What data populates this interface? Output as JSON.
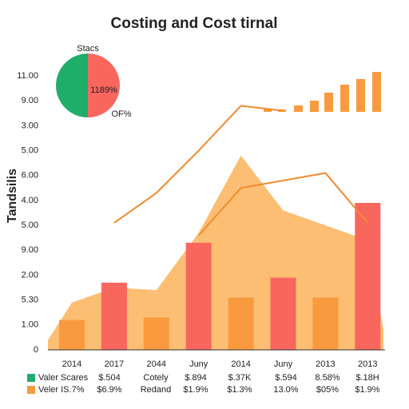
{
  "chart_data": {
    "type": "combo",
    "title": "Costing and Cost tirnal",
    "y_label": "Tandsilis",
    "categories": [
      "2014",
      "2017",
      "2044",
      "Juny",
      "2014",
      "Juny",
      "2013",
      "2013"
    ],
    "ylim": [
      0,
      11
    ],
    "yticks": [
      0,
      {
        "value": 1,
        "label": "1.00"
      },
      {
        "value": 2,
        "label": "5.30"
      },
      {
        "value": 3,
        "label": "2.00"
      },
      {
        "value": 4,
        "label": "9.00"
      },
      {
        "value": 5,
        "label": "5.00"
      },
      {
        "value": 6,
        "label": "4.00"
      },
      {
        "value": 7,
        "label": "6.00"
      },
      {
        "value": 8,
        "label": "5.00"
      },
      {
        "value": 9,
        "label": "3.00"
      },
      {
        "value": 10,
        "label": "9.00"
      },
      {
        "value": 11,
        "label": "11.00"
      }
    ],
    "area": {
      "color": "#fbb35a",
      "values": [
        1.9,
        2.5,
        2.4,
        4.7,
        7.8,
        5.6,
        5.0,
        4.4
      ]
    },
    "bars": {
      "values": [
        1.2,
        2.7,
        1.3,
        4.3,
        2.1,
        2.9,
        2.1,
        5.9
      ],
      "colors": [
        "#f99a3e",
        "#f9665e",
        "#f99a3e",
        "#f9665e",
        "#f99a3e",
        "#f9665e",
        "#f99a3e",
        "#f9665e"
      ]
    },
    "lines": [
      {
        "color": "#f08a2e",
        "values": [
          null,
          5.1,
          6.3,
          8.0,
          9.8,
          9.6,
          null,
          null
        ]
      },
      {
        "color": "#f08a2e",
        "values": [
          null,
          null,
          null,
          4.6,
          6.5,
          6.8,
          7.1,
          5.1
        ]
      }
    ],
    "pie": {
      "title": "Stacs",
      "center_label": "1189%",
      "side_label": "OF%",
      "values": [
        50,
        50
      ],
      "colors": [
        "#f9665e",
        "#1fae6a"
      ]
    },
    "legend_table": {
      "rows": [
        {
          "color": "#1fae6a",
          "cells": [
            "Valer Scares",
            "$.504",
            "Cotely",
            "$.894",
            "$.37K",
            "$.594",
            "8.58%",
            "$.18H"
          ]
        },
        {
          "color": "#f99a3e",
          "cells": [
            "Veler IS.7%",
            "$6.9%",
            "Redand",
            "$1.9%",
            "$1.3%",
            "13.0%",
            "$05%",
            "$1.9%"
          ]
        }
      ]
    }
  }
}
